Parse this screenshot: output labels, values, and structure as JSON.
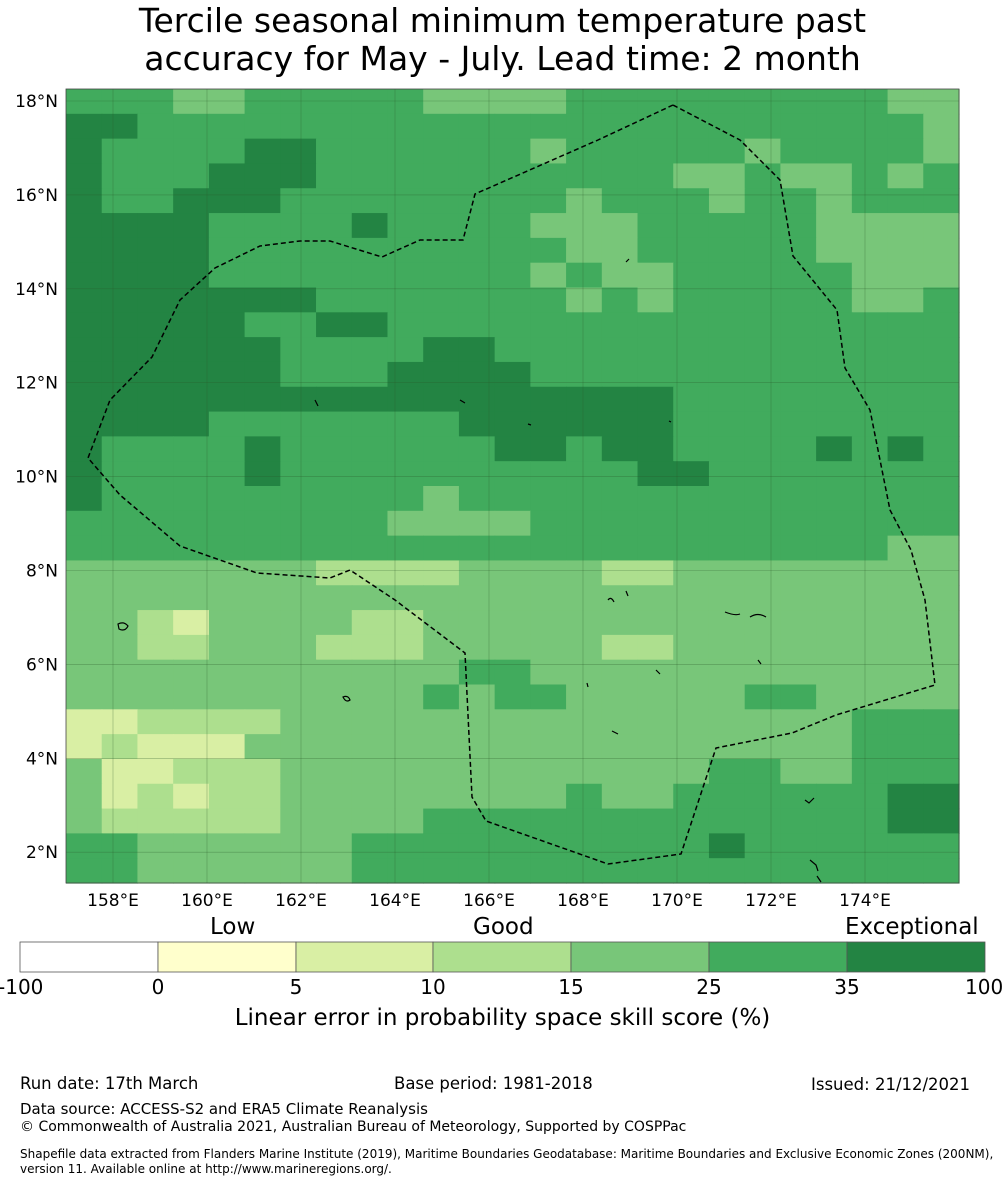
{
  "title_line1": "Tercile seasonal minimum temperature past",
  "title_line2": "accuracy for May - July. Lead time: 2 month",
  "map": {
    "lat_ticks": [
      "18°N",
      "16°N",
      "14°N",
      "12°N",
      "10°N",
      "8°N",
      "6°N",
      "4°N",
      "2°N"
    ],
    "lon_ticks": [
      "158°E",
      "160°E",
      "162°E",
      "164°E",
      "166°E",
      "168°E",
      "170°E",
      "172°E",
      "174°E"
    ],
    "grid_rows": [
      "4443344444333344444444433",
      "5544444444444444444444443",
      "5444455444444344444344443",
      "5444555444444444433433434",
      "5445554444444434443443444",
      "5555444454444333444443333",
      "5555444444444433444443333",
      "5555444444444343344444333",
      "5555555444444434344444334",
      "5555544554444444444444444",
      "5555554444554444444444444",
      "5555554445555444444444444",
      "5555555555555555544444444",
      "5555444444455555544444444",
      "5444454444445545544445454",
      "5444454444444444554444444",
      "5444444444344444444444444",
      "4444444443333444444444444",
      "4444444444444444444444433",
      "3333333222233332233333333",
      "3333333333333333333333333",
      "3321333322333333333333333",
      "3322333222333332233333333",
      "3333333333344333333333333",
      "3333333333434433333443333",
      "1122223333333333333333444",
      "1211133333333333333333444",
      "3112223333333333334433444",
      "3121223333333343344444455",
      "3222223333444444444444455",
      "4433333344444444445444444",
      "4433333344444444444444444"
    ],
    "palette": {
      "1": "#d9efa4",
      "2": "#addf8e",
      "3": "#78c679",
      "4": "#41ab5d",
      "5": "#238443"
    }
  },
  "colorbar": {
    "category_labels": [
      "Low",
      "Good",
      "Exceptional"
    ],
    "ticks": [
      "-100",
      "0",
      "5",
      "10",
      "15",
      "25",
      "35",
      "100"
    ],
    "colors": [
      "#ffffff",
      "#ffffcc",
      "#d9efa4",
      "#addf8e",
      "#78c679",
      "#41ab5d",
      "#238443"
    ],
    "title": "Linear error in probability space skill score (%)"
  },
  "footer": {
    "run_date": "Run date: 17th March",
    "base_period": "Base period: 1981-2018",
    "issued": "Issued: 21/12/2021",
    "data_source": "Data source: ACCESS-S2 and ERA5 Climate Reanalysis",
    "copyright": "© Commonwealth of Australia 2021, Australian Bureau of Meteorology, Supported by COSPPac",
    "shapefile_line1": "Shapefile data extracted from Flanders Marine Institute (2019), Maritime Boundaries Geodatabase: Maritime Boundaries and Exclusive Economic Zones (200NM),",
    "shapefile_line2": "version 11. Available online at http://www.marineregions.org/."
  }
}
